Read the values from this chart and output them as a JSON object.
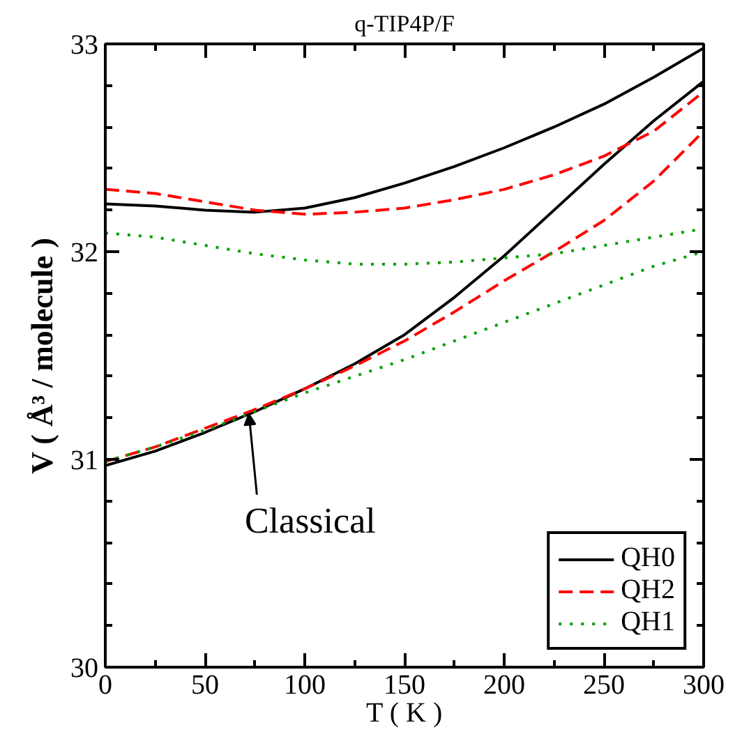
{
  "chart_data": {
    "type": "line",
    "title": "q-TIP4P/F",
    "xlabel": "T ( K )",
    "ylabel": "V ( Å³ / molecule )",
    "x": [
      0,
      25,
      50,
      75,
      100,
      125,
      150,
      175,
      200,
      225,
      250,
      275,
      300
    ],
    "series": [
      {
        "name": "QH0",
        "color": "#000000",
        "line_style": "solid",
        "values": [
          32.23,
          32.22,
          32.2,
          32.19,
          32.21,
          32.26,
          32.33,
          32.41,
          32.5,
          32.6,
          32.71,
          32.84,
          32.98
        ]
      },
      {
        "color": "#000000",
        "line_style": "solid",
        "values": [
          30.97,
          31.04,
          31.13,
          31.23,
          31.34,
          31.46,
          31.6,
          31.78,
          31.98,
          32.2,
          32.42,
          32.63,
          32.82
        ]
      },
      {
        "name": "QH2",
        "color": "#ff0000",
        "line_style": "dashed",
        "values": [
          32.3,
          32.28,
          32.24,
          32.2,
          32.18,
          32.19,
          32.21,
          32.25,
          32.3,
          32.37,
          32.46,
          32.58,
          32.77
        ]
      },
      {
        "color": "#ff0000",
        "line_style": "dashed",
        "values": [
          30.99,
          31.06,
          31.15,
          31.24,
          31.34,
          31.45,
          31.57,
          31.71,
          31.86,
          32.0,
          32.15,
          32.34,
          32.58
        ]
      },
      {
        "name": "QH1",
        "color": "#00a000",
        "line_style": "dotted",
        "values": [
          32.09,
          32.07,
          32.03,
          31.99,
          31.96,
          31.94,
          31.94,
          31.95,
          31.97,
          31.99,
          32.03,
          32.07,
          32.11
        ]
      },
      {
        "color": "#00a000",
        "line_style": "dotted",
        "values": [
          30.99,
          31.06,
          31.14,
          31.23,
          31.32,
          31.4,
          31.48,
          31.57,
          31.66,
          31.75,
          31.84,
          31.93,
          32.0
        ]
      }
    ],
    "annotations": [
      {
        "text": "Classical",
        "x": 72,
        "y": 31.22
      }
    ],
    "xlim": [
      0,
      300
    ],
    "ylim": [
      30,
      33
    ],
    "xticks": [
      0,
      50,
      100,
      150,
      200,
      250,
      300
    ],
    "yticks": [
      30,
      31,
      32,
      33
    ],
    "grid": false,
    "legend": "bottom right"
  }
}
